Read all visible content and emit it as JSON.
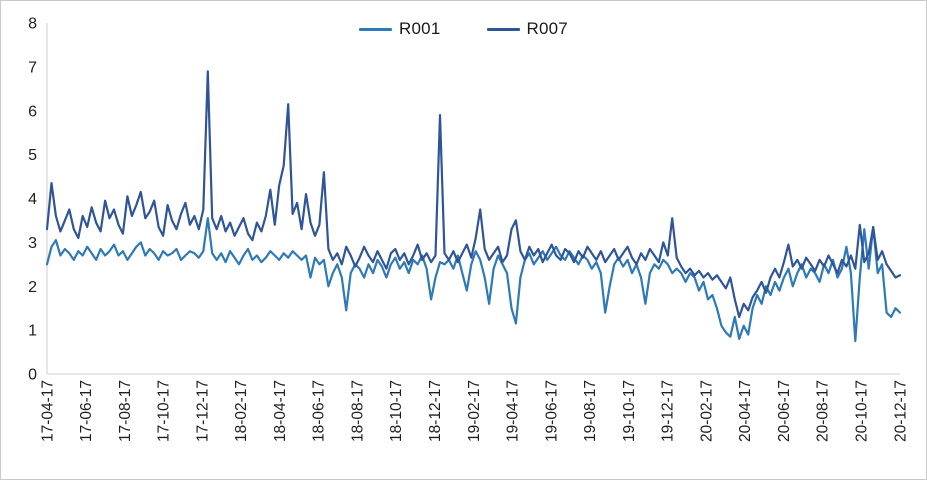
{
  "chart_data": {
    "type": "line",
    "title": "",
    "xlabel": "",
    "ylabel": "",
    "ylim": [
      0,
      8
    ],
    "y_ticks": [
      0,
      1,
      2,
      3,
      4,
      5,
      6,
      7,
      8
    ],
    "x_tick_labels": [
      "17-04-17",
      "17-06-17",
      "17-08-17",
      "17-10-17",
      "17-12-17",
      "18-02-17",
      "18-04-17",
      "18-06-17",
      "18-08-17",
      "18-10-17",
      "18-12-17",
      "19-02-17",
      "19-04-17",
      "19-06-17",
      "19-08-17",
      "19-10-17",
      "19-12-17",
      "20-02-17",
      "20-04-17",
      "20-06-17",
      "20-08-17",
      "20-10-17",
      "20-12-17"
    ],
    "grid": false,
    "legend_position": "top-center",
    "axis_color": "#d9d9d9",
    "series": [
      {
        "name": "R001",
        "color": "#2e79b8",
        "values": [
          2.5,
          2.9,
          3.05,
          2.7,
          2.85,
          2.75,
          2.6,
          2.8,
          2.7,
          2.9,
          2.75,
          2.6,
          2.85,
          2.7,
          2.8,
          2.95,
          2.7,
          2.8,
          2.6,
          2.75,
          2.9,
          3.0,
          2.7,
          2.85,
          2.75,
          2.6,
          2.8,
          2.7,
          2.75,
          2.85,
          2.6,
          2.7,
          2.8,
          2.75,
          2.65,
          2.8,
          3.55,
          2.75,
          2.6,
          2.75,
          2.55,
          2.8,
          2.65,
          2.5,
          2.7,
          2.85,
          2.6,
          2.7,
          2.55,
          2.65,
          2.8,
          2.7,
          2.6,
          2.75,
          2.65,
          2.8,
          2.7,
          2.6,
          2.7,
          2.2,
          2.65,
          2.5,
          2.6,
          2.0,
          2.3,
          2.5,
          2.2,
          1.45,
          2.3,
          2.5,
          2.4,
          2.2,
          2.5,
          2.3,
          2.6,
          2.45,
          2.2,
          2.5,
          2.65,
          2.4,
          2.55,
          2.3,
          2.6,
          2.5,
          2.7,
          2.4,
          1.7,
          2.2,
          2.55,
          2.5,
          2.6,
          2.4,
          2.7,
          2.3,
          1.9,
          2.5,
          2.8,
          2.6,
          2.2,
          1.6,
          2.4,
          2.7,
          2.5,
          2.3,
          1.5,
          1.15,
          2.2,
          2.6,
          2.75,
          2.5,
          2.65,
          2.8,
          2.6,
          2.75,
          2.9,
          2.7,
          2.6,
          2.8,
          2.65,
          2.5,
          2.7,
          2.6,
          2.4,
          2.55,
          2.3,
          1.4,
          2.0,
          2.5,
          2.65,
          2.45,
          2.6,
          2.3,
          2.5,
          2.2,
          1.6,
          2.3,
          2.5,
          2.4,
          2.6,
          2.5,
          2.3,
          2.4,
          2.3,
          2.1,
          2.3,
          2.2,
          1.9,
          2.1,
          1.7,
          1.8,
          1.5,
          1.1,
          0.95,
          0.85,
          1.3,
          0.8,
          1.1,
          0.9,
          1.5,
          1.8,
          1.6,
          2.0,
          1.8,
          2.1,
          1.9,
          2.2,
          2.4,
          2.0,
          2.3,
          2.5,
          2.2,
          2.4,
          2.3,
          2.1,
          2.5,
          2.3,
          2.6,
          2.2,
          2.4,
          2.9,
          2.3,
          0.75,
          2.2,
          3.3,
          2.4,
          3.35,
          2.3,
          2.5,
          1.4,
          1.3,
          1.5,
          1.4
        ]
      },
      {
        "name": "R007",
        "color": "#2f5597",
        "values": [
          3.3,
          4.35,
          3.6,
          3.25,
          3.5,
          3.75,
          3.3,
          3.1,
          3.6,
          3.35,
          3.8,
          3.45,
          3.25,
          3.95,
          3.55,
          3.75,
          3.4,
          3.2,
          4.05,
          3.6,
          3.85,
          4.15,
          3.55,
          3.7,
          3.95,
          3.35,
          3.15,
          3.85,
          3.5,
          3.3,
          3.65,
          3.9,
          3.4,
          3.6,
          3.3,
          3.75,
          6.9,
          3.55,
          3.3,
          3.6,
          3.25,
          3.45,
          3.15,
          3.35,
          3.55,
          3.2,
          3.05,
          3.45,
          3.25,
          3.6,
          4.2,
          3.4,
          4.3,
          4.75,
          6.15,
          3.65,
          3.9,
          3.3,
          4.1,
          3.45,
          3.15,
          3.4,
          4.6,
          2.85,
          2.6,
          2.75,
          2.5,
          2.9,
          2.7,
          2.45,
          2.65,
          2.9,
          2.7,
          2.55,
          2.8,
          2.6,
          2.4,
          2.75,
          2.85,
          2.6,
          2.75,
          2.5,
          2.7,
          2.95,
          2.6,
          2.75,
          2.55,
          2.7,
          5.9,
          2.75,
          2.6,
          2.8,
          2.55,
          2.75,
          2.95,
          2.65,
          3.1,
          3.75,
          2.85,
          2.6,
          2.75,
          2.9,
          2.55,
          2.7,
          3.3,
          3.5,
          2.8,
          2.6,
          2.9,
          2.7,
          2.85,
          2.55,
          2.75,
          2.95,
          2.7,
          2.6,
          2.85,
          2.75,
          2.55,
          2.8,
          2.65,
          2.9,
          2.75,
          2.6,
          2.8,
          2.55,
          2.7,
          2.85,
          2.6,
          2.75,
          2.9,
          2.65,
          2.5,
          2.75,
          2.6,
          2.85,
          2.7,
          2.55,
          3.0,
          2.7,
          3.55,
          2.65,
          2.45,
          2.3,
          2.4,
          2.25,
          2.35,
          2.2,
          2.3,
          2.15,
          2.25,
          2.1,
          1.95,
          2.2,
          1.7,
          1.3,
          1.6,
          1.45,
          1.75,
          1.9,
          2.1,
          1.85,
          2.2,
          2.4,
          2.2,
          2.55,
          2.95,
          2.45,
          2.6,
          2.4,
          2.65,
          2.5,
          2.35,
          2.6,
          2.45,
          2.7,
          2.5,
          2.3,
          2.6,
          2.45,
          2.7,
          2.4,
          3.4,
          2.55,
          2.75,
          3.35,
          2.6,
          2.8,
          2.5,
          2.35,
          2.2,
          2.25
        ]
      }
    ]
  },
  "legend": {
    "items": [
      {
        "label": "R001"
      },
      {
        "label": "R007"
      }
    ]
  }
}
